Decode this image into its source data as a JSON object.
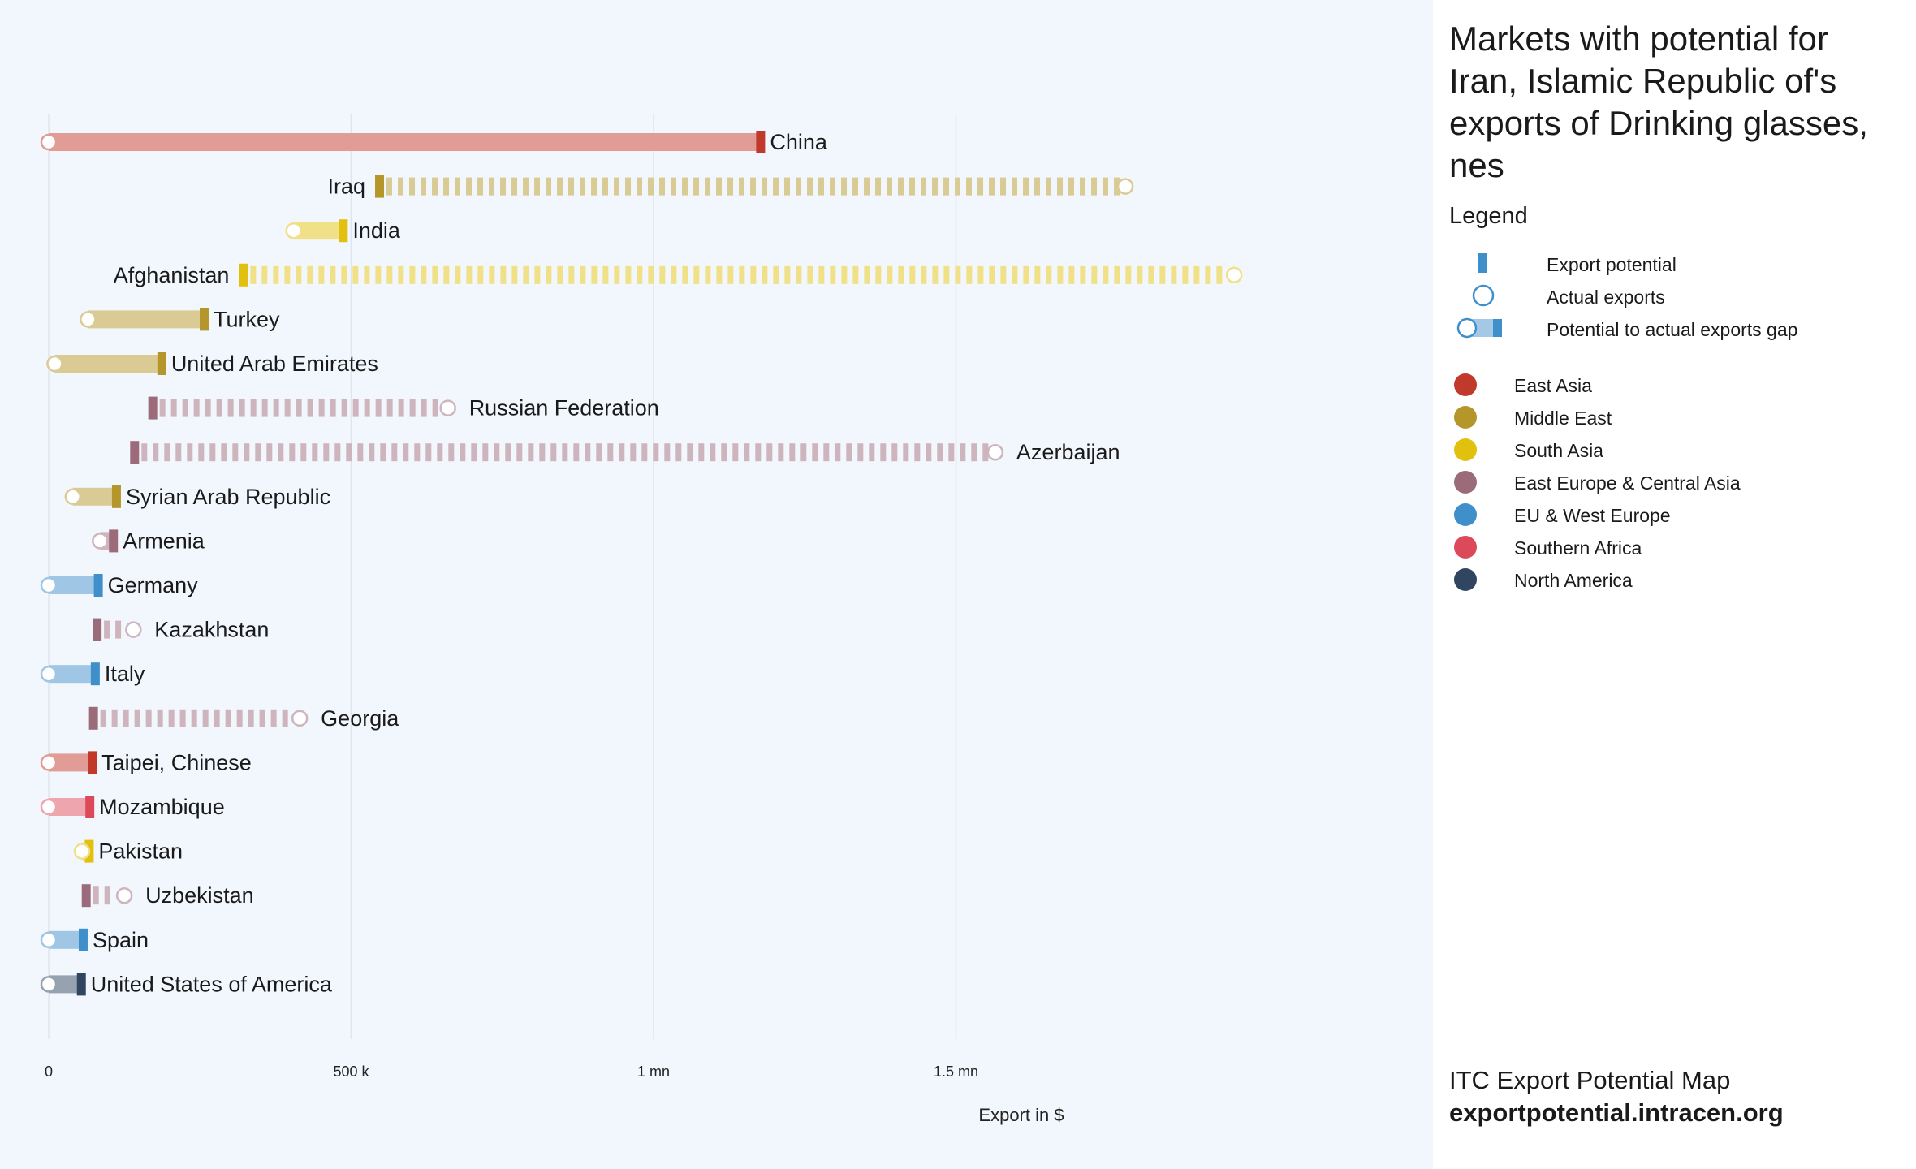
{
  "title": "Markets with potential for Iran, Islamic Republic of's exports of Drinking glasses, nes",
  "legend": {
    "title": "Legend",
    "items": [
      {
        "label": "Export potential"
      },
      {
        "label": "Actual exports"
      },
      {
        "label": "Potential to actual exports gap"
      }
    ]
  },
  "regions": [
    {
      "name": "East Asia",
      "color": "#c0392b"
    },
    {
      "name": "Middle East",
      "color": "#b5962a"
    },
    {
      "name": "South Asia",
      "color": "#e1c10e"
    },
    {
      "name": "East Europe & Central Asia",
      "color": "#9c6b7a"
    },
    {
      "name": "EU & West Europe",
      "color": "#3f8fcb"
    },
    {
      "name": "Southern Africa",
      "color": "#dc4a5a"
    },
    {
      "name": "North America",
      "color": "#2f4560"
    }
  ],
  "footer": {
    "line1": "ITC Export Potential Map",
    "line2": "exportpotential.intracen.org"
  },
  "chart_data": {
    "type": "bar",
    "xlabel": "Export in $",
    "xlim": [
      0,
      2300000
    ],
    "x_ticks": [
      {
        "value": 0,
        "label": "0"
      },
      {
        "value": 500000,
        "label": "500 k"
      },
      {
        "value": 1000000,
        "label": "1 mn"
      },
      {
        "value": 1500000,
        "label": "1.5 mn"
      }
    ],
    "grid": true,
    "series": [
      {
        "country": "China",
        "region": "East Asia",
        "potential": 1175000,
        "actual": 0
      },
      {
        "country": "Iraq",
        "region": "Middle East",
        "potential": 545000,
        "actual": 1780000
      },
      {
        "country": "India",
        "region": "South Asia",
        "potential": 485000,
        "actual": 405000
      },
      {
        "country": "Afghanistan",
        "region": "South Asia",
        "potential": 320000,
        "actual": 1960000
      },
      {
        "country": "Turkey",
        "region": "Middle East",
        "potential": 255000,
        "actual": 65000
      },
      {
        "country": "United Arab Emirates",
        "region": "Middle East",
        "potential": 185000,
        "actual": 10000
      },
      {
        "country": "Russian Federation",
        "region": "East Europe & Central Asia",
        "potential": 170000,
        "actual": 660000
      },
      {
        "country": "Azerbaijan",
        "region": "East Europe & Central Asia",
        "potential": 140000,
        "actual": 1565000
      },
      {
        "country": "Syrian Arab Republic",
        "region": "Middle East",
        "potential": 110000,
        "actual": 40000
      },
      {
        "country": "Armenia",
        "region": "East Europe & Central Asia",
        "potential": 105000,
        "actual": 85000
      },
      {
        "country": "Germany",
        "region": "EU & West Europe",
        "potential": 80000,
        "actual": 0
      },
      {
        "country": "Kazakhstan",
        "region": "East Europe & Central Asia",
        "potential": 78000,
        "actual": 140000
      },
      {
        "country": "Italy",
        "region": "EU & West Europe",
        "potential": 75000,
        "actual": 0
      },
      {
        "country": "Georgia",
        "region": "East Europe & Central Asia",
        "potential": 72000,
        "actual": 415000
      },
      {
        "country": "Taipei, Chinese",
        "region": "East Asia",
        "potential": 70000,
        "actual": 0
      },
      {
        "country": "Mozambique",
        "region": "Southern Africa",
        "potential": 66000,
        "actual": 0
      },
      {
        "country": "Pakistan",
        "region": "South Asia",
        "potential": 65000,
        "actual": 55000
      },
      {
        "country": "Uzbekistan",
        "region": "East Europe & Central Asia",
        "potential": 60000,
        "actual": 125000
      },
      {
        "country": "Spain",
        "region": "EU & West Europe",
        "potential": 55000,
        "actual": 0
      },
      {
        "country": "United States of America",
        "region": "North America",
        "potential": 52000,
        "actual": 0
      }
    ]
  }
}
